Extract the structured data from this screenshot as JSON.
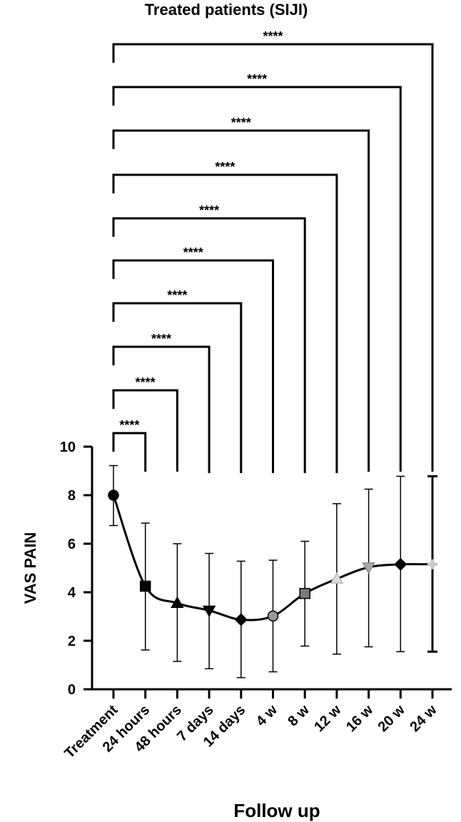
{
  "chart_data": {
    "type": "line",
    "title": "Treated patients (SIJI)",
    "xlabel": "Follow up",
    "ylabel": "VAS PAIN",
    "ylim": [
      0,
      10
    ],
    "yticks": [
      0,
      2,
      4,
      6,
      8,
      10
    ],
    "grid": false,
    "categories": [
      "Treatment",
      "24 hours",
      "48 hours",
      "7 days",
      "14 days",
      "4 w",
      "8 w",
      "12 w",
      "16 w",
      "20 w",
      "24 w"
    ],
    "series": [
      {
        "values": [
          8.0,
          4.25,
          3.55,
          3.25,
          2.87,
          3.02,
          3.95,
          4.55,
          5.03,
          5.15,
          5.15
        ],
        "error_low": [
          6.75,
          1.62,
          1.15,
          0.85,
          0.48,
          0.72,
          1.78,
          1.45,
          1.75,
          1.55,
          1.55
        ],
        "error_high": [
          9.22,
          6.85,
          6.0,
          5.6,
          5.28,
          5.32,
          6.1,
          7.65,
          8.25,
          8.78,
          8.78
        ],
        "markers": [
          {
            "shape": "circle",
            "color": "#000000"
          },
          {
            "shape": "square",
            "color": "#000000"
          },
          {
            "shape": "triangle-up",
            "color": "#000000"
          },
          {
            "shape": "triangle-down",
            "color": "#000000"
          },
          {
            "shape": "diamond",
            "color": "#000000"
          },
          {
            "shape": "circle",
            "color": "#9a9a9a"
          },
          {
            "shape": "square",
            "color": "#7a7a7a"
          },
          {
            "shape": "triangle-up",
            "color": "#dcdcdc"
          },
          {
            "shape": "triangle-down",
            "color": "#a9a9a9"
          },
          {
            "shape": "diamond",
            "color": "#000000"
          },
          {
            "shape": "plus",
            "color": "#c8c8c8"
          }
        ]
      }
    ],
    "comparisons": [
      {
        "from": "Treatment",
        "to": "24 hours",
        "label": "****"
      },
      {
        "from": "Treatment",
        "to": "48 hours",
        "label": "****"
      },
      {
        "from": "Treatment",
        "to": "7 days",
        "label": "****"
      },
      {
        "from": "Treatment",
        "to": "14 days",
        "label": "****"
      },
      {
        "from": "Treatment",
        "to": "4 w",
        "label": "****"
      },
      {
        "from": "Treatment",
        "to": "8 w",
        "label": "****"
      },
      {
        "from": "Treatment",
        "to": "12 w",
        "label": "****"
      },
      {
        "from": "Treatment",
        "to": "16 w",
        "label": "****"
      },
      {
        "from": "Treatment",
        "to": "20 w",
        "label": "****"
      },
      {
        "from": "Treatment",
        "to": "24 w",
        "label": "****"
      }
    ]
  }
}
